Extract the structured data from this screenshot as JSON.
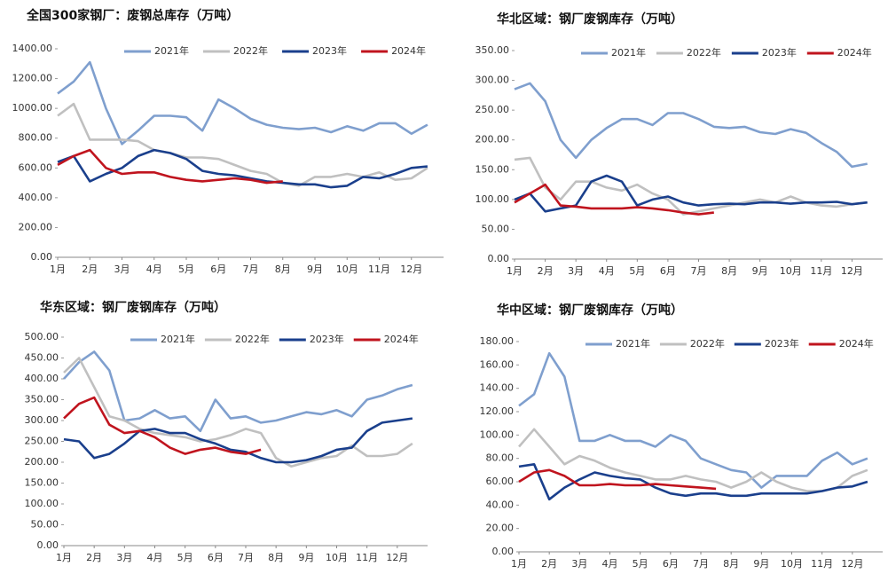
{
  "chart_data": [
    {
      "type": "line",
      "title": "全国300家钢厂：废钢总库存（万吨）",
      "categories": [
        "1月",
        null,
        "2月",
        null,
        "3月",
        null,
        "4月",
        null,
        "5月",
        null,
        "6月",
        null,
        "7月",
        null,
        "8月",
        null,
        "9月",
        null,
        "10月",
        null,
        "11月",
        null,
        "12月",
        null
      ],
      "ylim": [
        0,
        1400
      ],
      "yticks": [
        {
          "value": 0,
          "label": "0.00"
        },
        {
          "value": 200,
          "label": "200.00"
        },
        {
          "value": 400,
          "label": "400.00"
        },
        {
          "value": 600,
          "label": "600.00"
        },
        {
          "value": 800,
          "label": "800.00"
        },
        {
          "value": 1000,
          "label": "1000.00"
        },
        {
          "value": 1200,
          "label": "1200.00"
        },
        {
          "value": 1400,
          "label": "1400.00"
        }
      ],
      "series": [
        {
          "name": "2021年",
          "color": "#7f9fce",
          "values": [
            1100,
            1180,
            1310,
            1000,
            760,
            850,
            950,
            950,
            940,
            850,
            1060,
            1000,
            930,
            890,
            870,
            860,
            870,
            840,
            880,
            850,
            900,
            900,
            830,
            890
          ]
        },
        {
          "name": "2022年",
          "color": "#c0c0c0",
          "values": [
            950,
            1030,
            790,
            790,
            790,
            780,
            720,
            700,
            670,
            670,
            660,
            620,
            580,
            560,
            500,
            480,
            540,
            540,
            560,
            540,
            570,
            520,
            530,
            600
          ]
        },
        {
          "name": "2023年",
          "color": "#1a3f8c",
          "values": [
            640,
            680,
            510,
            560,
            600,
            680,
            720,
            700,
            660,
            580,
            560,
            550,
            530,
            510,
            500,
            490,
            490,
            470,
            480,
            540,
            530,
            560,
            600,
            610
          ]
        },
        {
          "name": "2024年",
          "color": "#c0141e",
          "values": [
            620,
            680,
            720,
            600,
            560,
            570,
            570,
            540,
            520,
            510,
            520,
            530,
            520,
            500,
            510,
            null,
            null,
            null,
            null,
            null,
            null,
            null,
            null,
            null
          ]
        }
      ]
    },
    {
      "type": "line",
      "title": "华北区域：钢厂废钢库存（万吨）",
      "categories": [
        "1月",
        null,
        "2月",
        null,
        "3月",
        null,
        "4月",
        null,
        "5月",
        null,
        "6月",
        null,
        "7月",
        null,
        "8月",
        null,
        "9月",
        null,
        "10月",
        null,
        "11月",
        null,
        "12月",
        null
      ],
      "ylim": [
        0,
        350
      ],
      "yticks": [
        {
          "value": 0,
          "label": "0.00"
        },
        {
          "value": 50,
          "label": "50.00"
        },
        {
          "value": 100,
          "label": "100.00"
        },
        {
          "value": 150,
          "label": "150.00"
        },
        {
          "value": 200,
          "label": "200.00"
        },
        {
          "value": 250,
          "label": "250.00"
        },
        {
          "value": 300,
          "label": "300.00"
        },
        {
          "value": 350,
          "label": "350.00"
        }
      ],
      "series": [
        {
          "name": "2021年",
          "color": "#7f9fce",
          "values": [
            285,
            295,
            265,
            200,
            170,
            200,
            220,
            235,
            235,
            225,
            245,
            245,
            235,
            222,
            220,
            222,
            213,
            210,
            218,
            212,
            195,
            180,
            155,
            160
          ]
        },
        {
          "name": "2022年",
          "color": "#c0c0c0",
          "values": [
            167,
            170,
            120,
            100,
            130,
            130,
            120,
            115,
            125,
            110,
            100,
            75,
            80,
            85,
            90,
            95,
            100,
            95,
            105,
            95,
            90,
            88,
            92,
            95
          ]
        },
        {
          "name": "2023年",
          "color": "#1a3f8c",
          "values": [
            100,
            110,
            80,
            85,
            90,
            130,
            140,
            130,
            90,
            100,
            105,
            95,
            90,
            92,
            93,
            92,
            95,
            95,
            93,
            95,
            95,
            96,
            92,
            95
          ]
        },
        {
          "name": "2024年",
          "color": "#c0141e",
          "values": [
            95,
            110,
            125,
            90,
            88,
            85,
            85,
            85,
            87,
            85,
            82,
            78,
            75,
            78,
            null,
            null,
            null,
            null,
            null,
            null,
            null,
            null,
            null,
            null
          ]
        }
      ]
    },
    {
      "type": "line",
      "title": "华东区域：钢厂废钢库存（万吨）",
      "categories": [
        "1月",
        null,
        "2月",
        null,
        "3月",
        null,
        "4月",
        null,
        "5月",
        null,
        "6月",
        null,
        "7月",
        null,
        "8月",
        null,
        "9月",
        null,
        "10月",
        null,
        "11月",
        null,
        "12月",
        null
      ],
      "ylim": [
        0,
        500
      ],
      "yticks": [
        {
          "value": 0,
          "label": "0.00"
        },
        {
          "value": 50,
          "label": "50.00"
        },
        {
          "value": 100,
          "label": "100.00"
        },
        {
          "value": 150,
          "label": "150.00"
        },
        {
          "value": 200,
          "label": "200.00"
        },
        {
          "value": 250,
          "label": "250.00"
        },
        {
          "value": 300,
          "label": "300.00"
        },
        {
          "value": 350,
          "label": "350.00"
        },
        {
          "value": 400,
          "label": "400.00"
        },
        {
          "value": 450,
          "label": "450.00"
        },
        {
          "value": 500,
          "label": "500.00"
        }
      ],
      "series": [
        {
          "name": "2021年",
          "color": "#7f9fce",
          "values": [
            400,
            440,
            465,
            420,
            300,
            305,
            325,
            305,
            310,
            275,
            350,
            305,
            310,
            295,
            300,
            310,
            320,
            315,
            325,
            310,
            350,
            360,
            375,
            385
          ]
        },
        {
          "name": "2022年",
          "color": "#c0c0c0",
          "values": [
            415,
            450,
            380,
            310,
            300,
            280,
            270,
            265,
            260,
            250,
            255,
            265,
            280,
            270,
            210,
            190,
            200,
            210,
            215,
            240,
            215,
            215,
            220,
            245
          ]
        },
        {
          "name": "2023年",
          "color": "#1a3f8c",
          "values": [
            255,
            250,
            210,
            220,
            245,
            275,
            280,
            270,
            270,
            255,
            245,
            230,
            225,
            210,
            200,
            200,
            205,
            215,
            230,
            235,
            275,
            295,
            300,
            305
          ]
        },
        {
          "name": "2024年",
          "color": "#c0141e",
          "values": [
            305,
            340,
            355,
            290,
            270,
            275,
            260,
            235,
            220,
            230,
            235,
            225,
            220,
            230,
            null,
            null,
            null,
            null,
            null,
            null,
            null,
            null,
            null,
            null
          ]
        }
      ]
    },
    {
      "type": "line",
      "title": "华中区域：钢厂废钢库存（万吨）",
      "categories": [
        "1月",
        null,
        "2月",
        null,
        "3月",
        null,
        "4月",
        null,
        "5月",
        null,
        "6月",
        null,
        "7月",
        null,
        "8月",
        null,
        "9月",
        null,
        "10月",
        null,
        "11月",
        null,
        "12月",
        null
      ],
      "ylim": [
        0,
        180
      ],
      "yticks": [
        {
          "value": 0,
          "label": "0.00"
        },
        {
          "value": 20,
          "label": "20.00"
        },
        {
          "value": 40,
          "label": "40.00"
        },
        {
          "value": 60,
          "label": "60.00"
        },
        {
          "value": 80,
          "label": "80.00"
        },
        {
          "value": 100,
          "label": "100.00"
        },
        {
          "value": 120,
          "label": "120.00"
        },
        {
          "value": 140,
          "label": "140.00"
        },
        {
          "value": 160,
          "label": "160.00"
        },
        {
          "value": 180,
          "label": "180.00"
        }
      ],
      "series": [
        {
          "name": "2021年",
          "color": "#7f9fce",
          "values": [
            125,
            135,
            170,
            150,
            95,
            95,
            100,
            95,
            95,
            90,
            100,
            95,
            80,
            75,
            70,
            68,
            55,
            65,
            65,
            65,
            78,
            85,
            75,
            80
          ]
        },
        {
          "name": "2022年",
          "color": "#c0c0c0",
          "values": [
            90,
            105,
            90,
            75,
            82,
            78,
            72,
            68,
            65,
            62,
            62,
            65,
            62,
            60,
            55,
            60,
            68,
            60,
            55,
            52,
            52,
            55,
            65,
            70
          ]
        },
        {
          "name": "2023年",
          "color": "#1a3f8c",
          "values": [
            73,
            75,
            45,
            55,
            62,
            68,
            65,
            63,
            62,
            55,
            50,
            48,
            50,
            50,
            48,
            48,
            50,
            50,
            50,
            50,
            52,
            55,
            56,
            60
          ]
        },
        {
          "name": "2024年",
          "color": "#c0141e",
          "values": [
            60,
            68,
            70,
            65,
            57,
            57,
            58,
            57,
            57,
            58,
            57,
            56,
            55,
            54,
            null,
            null,
            null,
            null,
            null,
            null,
            null,
            null,
            null,
            null
          ]
        }
      ]
    }
  ]
}
